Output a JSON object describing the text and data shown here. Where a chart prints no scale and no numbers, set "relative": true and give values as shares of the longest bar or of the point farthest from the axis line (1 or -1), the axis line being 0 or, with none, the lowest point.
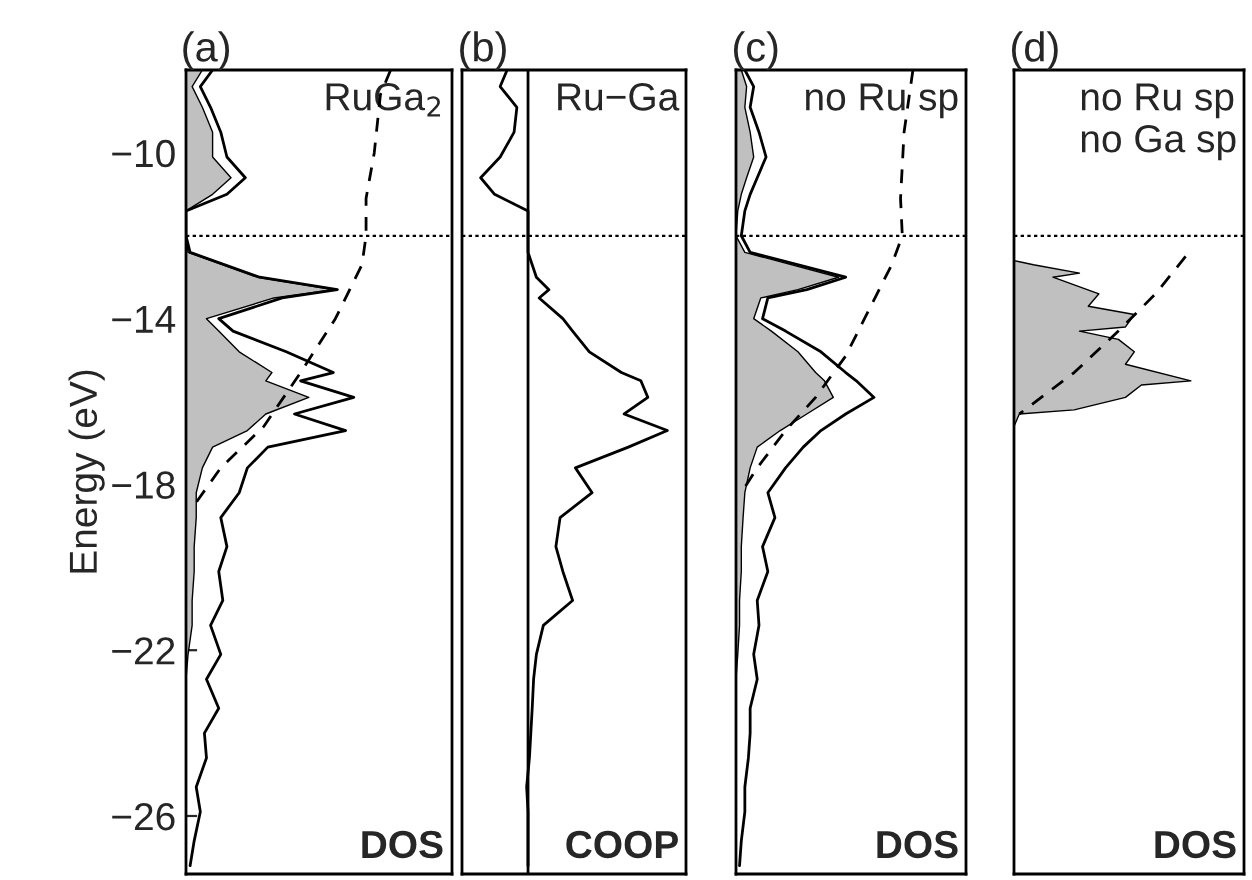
{
  "chart_data": [
    {
      "type": "line",
      "orientation": "horizontal",
      "relative": true,
      "title": "(a)",
      "ylabel": "Energy (eV)",
      "ylim": [
        -27.4,
        -8.0
      ],
      "yticks": [
        {
          "value": -10,
          "label": "−10"
        },
        {
          "value": -14,
          "label": "−14"
        },
        {
          "value": -18,
          "label": "−18"
        },
        {
          "value": -22,
          "label": "−22"
        },
        {
          "value": -26,
          "label": "−26"
        }
      ],
      "tick_labels": "y",
      "grid": false,
      "legend": false,
      "annotations": [
        "RuGa$_{2}$",
        "DOS"
      ],
      "ref_lines": [
        {
          "axis": "y",
          "value": -12.0,
          "label": null,
          "color": "#000000",
          "line_style": "dotted"
        }
      ],
      "x": [
        -8.0,
        -8.4,
        -8.9,
        -9.5,
        -10.1,
        -10.6,
        -11.0,
        -11.4,
        -12.0,
        -12.4,
        -13.0,
        -13.3,
        -13.5,
        -14.0,
        -14.3,
        -14.8,
        -15.3,
        -15.5,
        -15.9,
        -16.3,
        -16.7,
        -17.1,
        -17.6,
        -18.2,
        -18.8,
        -19.5,
        -20.1,
        -20.8,
        -21.4,
        -22.1,
        -22.7,
        -23.4,
        -24.0,
        -24.6,
        -25.3,
        -25.9,
        -26.6,
        -27.2
      ],
      "series": [
        {
          "type": "line",
          "color": "#000000",
          "line_style": "solid",
          "values": [
            0.13,
            0.07,
            0.12,
            0.17,
            0.2,
            0.29,
            0.2,
            0,
            0,
            0.02,
            0.36,
            0.74,
            0.47,
            0.16,
            0.23,
            0.49,
            0.72,
            0.56,
            0.82,
            0.53,
            0.78,
            0.4,
            0.3,
            0.26,
            0.17,
            0.2,
            0.16,
            0.18,
            0.12,
            0.17,
            0.1,
            0.16,
            0.09,
            0.1,
            0.05,
            0.07,
            0.04,
            0.02
          ]
        },
        {
          "type": "area",
          "color": "#c0c0c0",
          "values": [
            0.08,
            0.03,
            0.08,
            0.13,
            0.13,
            0.22,
            0.13,
            0,
            0,
            0.01,
            0.35,
            0.72,
            0.43,
            0.1,
            0.16,
            0.26,
            0.42,
            0.39,
            0.6,
            0.39,
            0.3,
            0.13,
            0.08,
            0.05,
            0.05,
            0.04,
            0.04,
            0.03,
            0.03,
            0.01,
            0,
            0,
            0,
            0,
            0,
            0,
            0,
            0
          ]
        },
        {
          "type": "line",
          "color": "#000000",
          "line_style": "dashed",
          "x": [
            -8.0,
            -8.6,
            -10.0,
            -11.1,
            -12.0,
            -12.7,
            -13.2,
            -14.0,
            -15.3,
            -16.6,
            -17.6,
            -18.5
          ],
          "values": [
            1.0,
            0.95,
            0.92,
            0.88,
            0.88,
            0.86,
            0.81,
            0.73,
            0.56,
            0.38,
            0.17,
            0.04
          ]
        }
      ]
    },
    {
      "type": "line",
      "orientation": "horizontal",
      "relative": true,
      "title": "(b)",
      "ylim": [
        -27.4,
        -8.0
      ],
      "tick_labels": false,
      "grid": false,
      "legend": false,
      "annotations": [
        "Ru−Ga",
        "COOP"
      ],
      "ref_lines": [
        {
          "axis": "y",
          "value": -12.0,
          "label": null,
          "color": "#000000",
          "line_style": "dotted"
        }
      ],
      "x": [
        -8.0,
        -8.4,
        -8.9,
        -9.5,
        -10.1,
        -10.6,
        -11.0,
        -11.4,
        -12.0,
        -12.4,
        -13.0,
        -13.3,
        -13.5,
        -14.0,
        -14.3,
        -14.8,
        -15.3,
        -15.5,
        -15.9,
        -16.3,
        -16.7,
        -17.1,
        -17.6,
        -18.2,
        -18.8,
        -19.5,
        -20.1,
        -20.8,
        -21.4,
        -22.1,
        -22.7,
        -23.4,
        -24.0,
        -24.6,
        -25.3,
        -25.9,
        -26.6,
        -27.2
      ],
      "series": [
        {
          "type": "line",
          "color": "#000000",
          "line_style": "solid",
          "values": [
            -0.15,
            -0.2,
            -0.08,
            -0.1,
            -0.2,
            -0.34,
            -0.24,
            0,
            0,
            0,
            0.06,
            0.15,
            0.08,
            0.25,
            0.32,
            0.44,
            0.67,
            0.81,
            0.86,
            0.69,
            1.0,
            0.72,
            0.34,
            0.46,
            0.23,
            0.2,
            0.25,
            0.32,
            0.11,
            0.06,
            0.04,
            0.03,
            0.02,
            0.01,
            -0.01,
            0,
            0,
            0
          ]
        }
      ]
    },
    {
      "type": "line",
      "orientation": "horizontal",
      "relative": true,
      "title": "(c)",
      "ylim": [
        -27.4,
        -8.0
      ],
      "tick_labels": false,
      "grid": false,
      "legend": false,
      "annotations": [
        "no Ru sp",
        "DOS"
      ],
      "ref_lines": [
        {
          "axis": "y",
          "value": -12.0,
          "label": null,
          "color": "#000000",
          "line_style": "dotted"
        }
      ],
      "x": [
        -8.0,
        -8.4,
        -8.9,
        -9.5,
        -10.1,
        -10.6,
        -11.0,
        -11.4,
        -12.0,
        -12.4,
        -13.0,
        -13.3,
        -13.5,
        -14.0,
        -14.3,
        -14.8,
        -15.3,
        -15.5,
        -15.9,
        -16.3,
        -16.7,
        -17.1,
        -17.6,
        -18.2,
        -18.8,
        -19.5,
        -20.1,
        -20.8,
        -21.4,
        -22.1,
        -22.7,
        -23.4,
        -24.0,
        -24.6,
        -25.3,
        -25.9,
        -26.6,
        -27.2
      ],
      "series": [
        {
          "type": "line",
          "color": "#000000",
          "line_style": "solid",
          "values": [
            0.05,
            0.1,
            0.08,
            0.13,
            0.17,
            0.12,
            0.08,
            0.05,
            0.03,
            0.08,
            0.62,
            0.4,
            0.18,
            0.15,
            0.28,
            0.48,
            0.62,
            0.68,
            0.78,
            0.62,
            0.48,
            0.38,
            0.28,
            0.18,
            0.22,
            0.15,
            0.18,
            0.12,
            0.13,
            0.1,
            0.12,
            0.08,
            0.08,
            0.07,
            0.05,
            0.05,
            0.03,
            0.02
          ]
        },
        {
          "type": "area",
          "color": "#c0c0c0",
          "values": [
            0.03,
            0.06,
            0.05,
            0.08,
            0.1,
            0.06,
            0.03,
            0.01,
            0,
            0.05,
            0.58,
            0.35,
            0.14,
            0.1,
            0.2,
            0.35,
            0.45,
            0.5,
            0.55,
            0.4,
            0.25,
            0.12,
            0.08,
            0.05,
            0.04,
            0.03,
            0.03,
            0.02,
            0.02,
            0.01,
            0,
            0,
            0,
            0,
            0,
            0,
            0,
            0
          ]
        },
        {
          "type": "line",
          "color": "#000000",
          "line_style": "dashed",
          "x": [
            -8.0,
            -9.5,
            -11.1,
            -12.0,
            -12.7,
            -13.8,
            -14.9,
            -15.9,
            -16.7,
            -17.6,
            -18.2
          ],
          "values": [
            1.0,
            0.95,
            0.93,
            0.94,
            0.88,
            0.75,
            0.62,
            0.45,
            0.28,
            0.12,
            0.03
          ]
        }
      ]
    },
    {
      "type": "line",
      "orientation": "horizontal",
      "relative": true,
      "title": "(d)",
      "ylim": [
        -27.4,
        -8.0
      ],
      "tick_labels": false,
      "grid": false,
      "legend": false,
      "annotations": [
        "no Ru sp\nno Ga sp",
        "DOS"
      ],
      "ref_lines": [
        {
          "axis": "y",
          "value": -12.0,
          "label": null,
          "color": "#000000",
          "line_style": "dotted"
        }
      ],
      "series": [
        {
          "type": "area",
          "color": "#c0c0c0",
          "x": [
            -12.6,
            -12.7,
            -12.9,
            -13.0,
            -13.4,
            -13.7,
            -13.9,
            -14.2,
            -14.3,
            -14.5,
            -14.8,
            -15.1,
            -15.5,
            -15.6,
            -15.9,
            -16.2,
            -16.3,
            -16.6
          ],
          "values": [
            0,
            0.11,
            0.37,
            0.22,
            0.48,
            0.42,
            0.68,
            0.63,
            0.37,
            0.59,
            0.68,
            0.63,
            1.0,
            0.72,
            0.63,
            0.34,
            0.03,
            0
          ]
        },
        {
          "type": "line",
          "color": "#000000",
          "line_style": "dashed",
          "x": [
            -12.5,
            -13.4,
            -14.3,
            -15.3,
            -16.3
          ],
          "values": [
            0.97,
            0.8,
            0.59,
            0.34,
            0.03
          ]
        }
      ]
    }
  ]
}
